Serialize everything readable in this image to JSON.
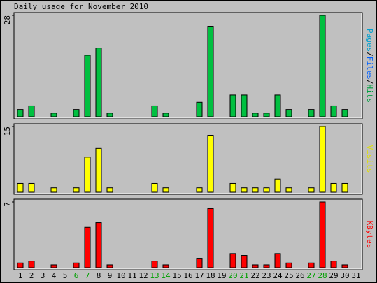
{
  "chart_data": {
    "type": "bar",
    "title": "Daily usage for November 2010",
    "categories": [
      "1",
      "2",
      "3",
      "4",
      "5",
      "6",
      "7",
      "8",
      "9",
      "10",
      "11",
      "12",
      "13",
      "14",
      "15",
      "16",
      "17",
      "18",
      "19",
      "20",
      "21",
      "22",
      "23",
      "24",
      "25",
      "26",
      "27",
      "28",
      "29",
      "30",
      "31"
    ],
    "category_colors": [
      "#000000",
      "#000000",
      "#000000",
      "#000000",
      "#000000",
      "#00a000",
      "#00a000",
      "#000000",
      "#000000",
      "#000000",
      "#000000",
      "#000000",
      "#00a000",
      "#00a000",
      "#000000",
      "#000000",
      "#000000",
      "#000000",
      "#000000",
      "#00a000",
      "#00a000",
      "#000000",
      "#000000",
      "#000000",
      "#000000",
      "#000000",
      "#00a000",
      "#00a000",
      "#000000",
      "#000000",
      "#000000"
    ],
    "panels": [
      {
        "ylabel_parts": [
          {
            "text": "Pages",
            "color": "#00a0d0"
          },
          {
            "text": "/",
            "color": "#000000"
          },
          {
            "text": "Files",
            "color": "#0060ff"
          },
          {
            "text": "/",
            "color": "#000000"
          },
          {
            "text": "Hits",
            "color": "#00a040"
          }
        ],
        "ylim": [
          0,
          28
        ],
        "yticks": [
          28
        ],
        "series": [
          {
            "name": "Hits",
            "color": "#00c040",
            "values": [
              2,
              3,
              0,
              1,
              0,
              2,
              17,
              19,
              1,
              0,
              0,
              0,
              3,
              1,
              0,
              0,
              4,
              25,
              0,
              6,
              6,
              1,
              1,
              6,
              2,
              0,
              2,
              28,
              3,
              2,
              0
            ]
          }
        ]
      },
      {
        "ylabel_parts": [
          {
            "text": "Visits",
            "color": "#e0e000"
          }
        ],
        "ylim": [
          0,
          15
        ],
        "yticks": [
          15
        ],
        "series": [
          {
            "name": "Visits",
            "color": "#ffff00",
            "values": [
              2,
              2,
              0,
              1,
              0,
              1,
              8,
              10,
              1,
              0,
              0,
              0,
              2,
              1,
              0,
              0,
              1,
              13,
              0,
              2,
              1,
              1,
              1,
              3,
              1,
              0,
              1,
              15,
              2,
              2,
              0
            ]
          }
        ]
      },
      {
        "ylabel_parts": [
          {
            "text": "KBytes",
            "color": "#ff0000"
          }
        ],
        "ylim": [
          0,
          7
        ],
        "yticks": [
          7
        ],
        "series": [
          {
            "name": "KBytes",
            "color": "#ff0000",
            "values": [
              0.5,
              0.7,
              0,
              0.3,
              0,
              0.5,
              4.3,
              4.8,
              0.3,
              0,
              0,
              0,
              0.7,
              0.3,
              0,
              0,
              1.0,
              6.3,
              0,
              1.5,
              1.3,
              0.3,
              0.3,
              1.5,
              0.5,
              0,
              0.5,
              7,
              0.7,
              0.3,
              0
            ]
          }
        ]
      }
    ]
  }
}
